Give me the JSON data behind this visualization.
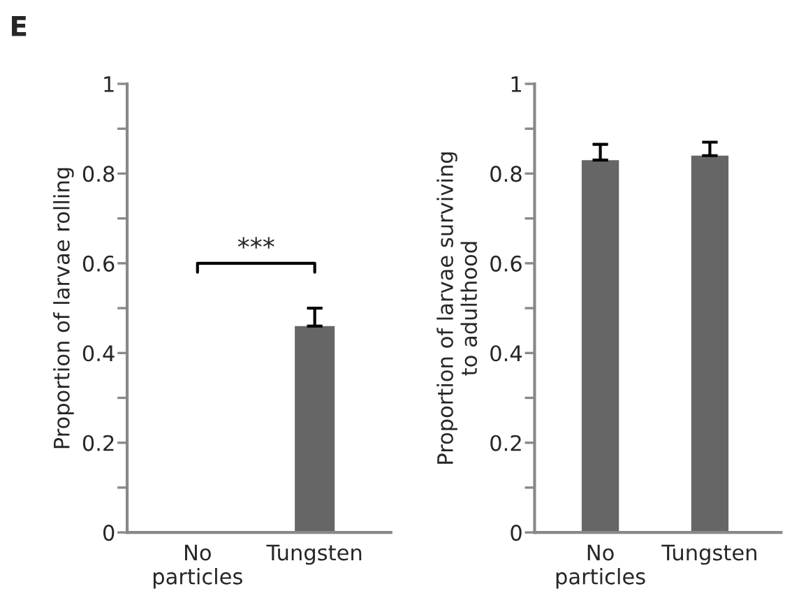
{
  "chart_data": [
    {
      "type": "bar",
      "ylabel": "Proportion of larvae rolling",
      "categories": [
        "No\nparticles",
        "Tungsten"
      ],
      "annotations": [
        "E",
        "***"
      ],
      "series": [
        {
          "color": "#666666",
          "values": [
            0,
            0.46
          ],
          "errors": [
            null,
            [
              0.46,
              0.5
            ]
          ]
        }
      ],
      "ylim": [
        0,
        1
      ],
      "yticks": [
        0,
        {
          "value": 0.1,
          "label": null
        },
        0.2,
        {
          "value": 0.3,
          "label": null
        },
        0.4,
        {
          "value": 0.5,
          "label": null
        },
        0.6,
        {
          "value": 0.7,
          "label": null
        },
        0.8,
        {
          "value": 0.9,
          "label": null
        },
        1
      ],
      "grid": false,
      "legend": false
    },
    {
      "type": "bar",
      "ylabel": "Proportion of larvae surviving\nto adulthood",
      "categories": [
        "No\nparticles",
        "Tungsten"
      ],
      "series": [
        {
          "color": "#666666",
          "values": [
            0.83,
            0.84
          ],
          "errors": [
            [
              0.83,
              0.865
            ],
            [
              0.84,
              0.87
            ]
          ]
        }
      ],
      "ylim": [
        0,
        1
      ],
      "yticks": [
        0,
        {
          "value": 0.1,
          "label": null
        },
        0.2,
        {
          "value": 0.3,
          "label": null
        },
        0.4,
        {
          "value": 0.5,
          "label": null
        },
        0.6,
        {
          "value": 0.7,
          "label": null
        },
        0.8,
        {
          "value": 0.9,
          "label": null
        },
        1
      ],
      "grid": false,
      "legend": false
    }
  ]
}
